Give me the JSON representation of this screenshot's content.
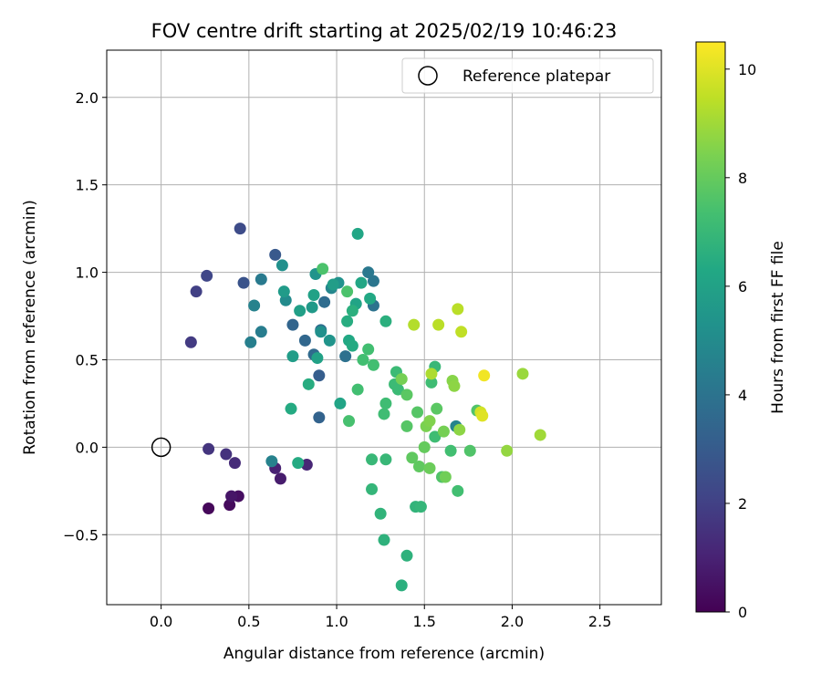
{
  "chart_data": {
    "type": "scatter",
    "title": "FOV centre drift starting at 2025/02/19 10:46:23",
    "xlabel": "Angular distance from reference (arcmin)",
    "ylabel": "Rotation from reference (arcmin)",
    "xlim": [
      -0.31,
      2.85
    ],
    "ylim": [
      -0.9,
      2.27
    ],
    "xticks": [
      0.0,
      0.5,
      1.0,
      1.5,
      2.0,
      2.5
    ],
    "xtick_labels": [
      "0.0",
      "0.5",
      "1.0",
      "1.5",
      "2.0",
      "2.5"
    ],
    "yticks": [
      -0.5,
      0.0,
      0.5,
      1.0,
      1.5,
      2.0
    ],
    "ytick_labels": [
      "−0.5",
      "0.0",
      "0.5",
      "1.0",
      "1.5",
      "2.0"
    ],
    "grid": true,
    "legend": {
      "position": "top-right",
      "entries": [
        "Reference platepar"
      ]
    },
    "reference_point": {
      "x": 0.0,
      "y": 0.0
    },
    "colorbar": {
      "label": "Hours from first FF file",
      "range": [
        0,
        10.5
      ],
      "ticks": [
        0,
        2,
        4,
        6,
        8,
        10
      ],
      "tick_labels": [
        "0",
        "2",
        "4",
        "6",
        "8",
        "10"
      ],
      "colormap": "viridis"
    },
    "points": [
      {
        "x": 0.27,
        "y": -0.35,
        "h": 0.2
      },
      {
        "x": 0.39,
        "y": -0.33,
        "h": 0.3
      },
      {
        "x": 0.44,
        "y": -0.28,
        "h": 0.4
      },
      {
        "x": 0.4,
        "y": -0.28,
        "h": 0.6
      },
      {
        "x": 0.68,
        "y": -0.18,
        "h": 0.8
      },
      {
        "x": 0.65,
        "y": -0.12,
        "h": 1.0
      },
      {
        "x": 0.83,
        "y": -0.1,
        "h": 1.1
      },
      {
        "x": 0.42,
        "y": -0.09,
        "h": 1.3
      },
      {
        "x": 0.37,
        "y": -0.04,
        "h": 1.5
      },
      {
        "x": 0.27,
        "y": -0.01,
        "h": 1.6
      },
      {
        "x": 0.17,
        "y": 0.6,
        "h": 1.8
      },
      {
        "x": 0.2,
        "y": 0.89,
        "h": 2.0
      },
      {
        "x": 0.26,
        "y": 0.98,
        "h": 2.2
      },
      {
        "x": 0.45,
        "y": 1.25,
        "h": 2.4
      },
      {
        "x": 0.47,
        "y": 0.94,
        "h": 2.7
      },
      {
        "x": 0.65,
        "y": 1.1,
        "h": 2.9
      },
      {
        "x": 0.9,
        "y": 0.41,
        "h": 3.1
      },
      {
        "x": 0.9,
        "y": 0.17,
        "h": 3.3
      },
      {
        "x": 0.75,
        "y": 0.7,
        "h": 3.4
      },
      {
        "x": 0.82,
        "y": 0.61,
        "h": 3.5
      },
      {
        "x": 0.87,
        "y": 0.53,
        "h": 3.6
      },
      {
        "x": 0.93,
        "y": 0.83,
        "h": 3.7
      },
      {
        "x": 0.91,
        "y": 0.67,
        "h": 3.8
      },
      {
        "x": 1.05,
        "y": 0.52,
        "h": 3.9
      },
      {
        "x": 1.21,
        "y": 0.81,
        "h": 4.0
      },
      {
        "x": 1.21,
        "y": 0.95,
        "h": 4.1
      },
      {
        "x": 1.18,
        "y": 1.0,
        "h": 4.2
      },
      {
        "x": 0.57,
        "y": 0.96,
        "h": 4.3
      },
      {
        "x": 0.57,
        "y": 0.66,
        "h": 4.4
      },
      {
        "x": 0.51,
        "y": 0.6,
        "h": 4.5
      },
      {
        "x": 0.53,
        "y": 0.81,
        "h": 4.6
      },
      {
        "x": 0.63,
        "y": -0.08,
        "h": 4.6
      },
      {
        "x": 1.68,
        "y": 0.12,
        "h": 4.7
      },
      {
        "x": 0.97,
        "y": 0.91,
        "h": 4.8
      },
      {
        "x": 0.71,
        "y": 0.84,
        "h": 5.0
      },
      {
        "x": 0.69,
        "y": 1.04,
        "h": 5.2
      },
      {
        "x": 0.91,
        "y": 0.66,
        "h": 5.2
      },
      {
        "x": 1.01,
        "y": 0.94,
        "h": 5.3
      },
      {
        "x": 0.88,
        "y": 0.99,
        "h": 5.4
      },
      {
        "x": 0.96,
        "y": 0.61,
        "h": 5.4
      },
      {
        "x": 0.86,
        "y": 0.8,
        "h": 5.6
      },
      {
        "x": 0.7,
        "y": 0.89,
        "h": 5.7
      },
      {
        "x": 0.75,
        "y": 0.52,
        "h": 5.8
      },
      {
        "x": 0.98,
        "y": 0.93,
        "h": 5.8
      },
      {
        "x": 0.79,
        "y": 0.78,
        "h": 5.9
      },
      {
        "x": 0.87,
        "y": 0.87,
        "h": 6.0
      },
      {
        "x": 0.89,
        "y": 0.51,
        "h": 6.0
      },
      {
        "x": 1.02,
        "y": 0.25,
        "h": 6.1
      },
      {
        "x": 1.11,
        "y": 0.82,
        "h": 6.1
      },
      {
        "x": 1.14,
        "y": 0.94,
        "h": 6.2
      },
      {
        "x": 1.12,
        "y": 1.22,
        "h": 6.2
      },
      {
        "x": 1.19,
        "y": 0.85,
        "h": 6.3
      },
      {
        "x": 1.07,
        "y": 0.61,
        "h": 6.3
      },
      {
        "x": 1.09,
        "y": 0.58,
        "h": 6.4
      },
      {
        "x": 0.74,
        "y": 0.22,
        "h": 6.4
      },
      {
        "x": 0.78,
        "y": -0.09,
        "h": 6.4
      },
      {
        "x": 0.84,
        "y": 0.36,
        "h": 6.5
      },
      {
        "x": 1.06,
        "y": 0.72,
        "h": 6.5
      },
      {
        "x": 1.09,
        "y": 0.78,
        "h": 6.6
      },
      {
        "x": 1.28,
        "y": 0.72,
        "h": 6.6
      },
      {
        "x": 1.37,
        "y": -0.79,
        "h": 6.6
      },
      {
        "x": 1.4,
        "y": -0.62,
        "h": 6.7
      },
      {
        "x": 1.27,
        "y": -0.53,
        "h": 6.7
      },
      {
        "x": 1.25,
        "y": -0.38,
        "h": 6.8
      },
      {
        "x": 1.45,
        "y": -0.34,
        "h": 6.8
      },
      {
        "x": 1.48,
        "y": -0.34,
        "h": 6.9
      },
      {
        "x": 1.2,
        "y": -0.24,
        "h": 6.9
      },
      {
        "x": 1.2,
        "y": -0.07,
        "h": 7.0
      },
      {
        "x": 1.28,
        "y": -0.07,
        "h": 7.0
      },
      {
        "x": 1.34,
        "y": 0.43,
        "h": 7.1
      },
      {
        "x": 1.35,
        "y": 0.33,
        "h": 7.1
      },
      {
        "x": 1.33,
        "y": 0.36,
        "h": 7.1
      },
      {
        "x": 1.27,
        "y": 0.19,
        "h": 7.2
      },
      {
        "x": 1.28,
        "y": 0.25,
        "h": 7.2
      },
      {
        "x": 1.18,
        "y": 0.56,
        "h": 7.3
      },
      {
        "x": 1.15,
        "y": 0.5,
        "h": 7.3
      },
      {
        "x": 1.21,
        "y": 0.47,
        "h": 7.3
      },
      {
        "x": 1.12,
        "y": 0.33,
        "h": 7.3
      },
      {
        "x": 1.07,
        "y": 0.15,
        "h": 7.4
      },
      {
        "x": 1.06,
        "y": 0.89,
        "h": 7.5
      },
      {
        "x": 0.92,
        "y": 1.02,
        "h": 7.5
      },
      {
        "x": 1.54,
        "y": 0.37,
        "h": 7.2
      },
      {
        "x": 1.56,
        "y": 0.46,
        "h": 7.0
      },
      {
        "x": 1.56,
        "y": 0.06,
        "h": 7.2
      },
      {
        "x": 1.65,
        "y": -0.02,
        "h": 7.3
      },
      {
        "x": 1.69,
        "y": -0.25,
        "h": 7.3
      },
      {
        "x": 1.6,
        "y": -0.17,
        "h": 7.6
      },
      {
        "x": 1.76,
        "y": -0.02,
        "h": 7.6
      },
      {
        "x": 1.8,
        "y": 0.21,
        "h": 7.6
      },
      {
        "x": 1.4,
        "y": 0.12,
        "h": 7.7
      },
      {
        "x": 1.46,
        "y": 0.2,
        "h": 7.7
      },
      {
        "x": 1.4,
        "y": 0.3,
        "h": 7.8
      },
      {
        "x": 1.57,
        "y": 0.22,
        "h": 7.8
      },
      {
        "x": 1.47,
        "y": -0.11,
        "h": 7.9
      },
      {
        "x": 1.43,
        "y": -0.06,
        "h": 7.9
      },
      {
        "x": 1.5,
        "y": 0.0,
        "h": 8.0
      },
      {
        "x": 1.53,
        "y": -0.12,
        "h": 8.1
      },
      {
        "x": 1.62,
        "y": -0.17,
        "h": 8.2
      },
      {
        "x": 1.61,
        "y": 0.09,
        "h": 8.3
      },
      {
        "x": 1.37,
        "y": 0.39,
        "h": 8.3
      },
      {
        "x": 1.51,
        "y": 0.12,
        "h": 8.4
      },
      {
        "x": 1.53,
        "y": 0.15,
        "h": 8.5
      },
      {
        "x": 1.66,
        "y": 0.38,
        "h": 8.6
      },
      {
        "x": 1.67,
        "y": 0.35,
        "h": 8.7
      },
      {
        "x": 1.7,
        "y": 0.1,
        "h": 8.7
      },
      {
        "x": 1.97,
        "y": -0.02,
        "h": 8.8
      },
      {
        "x": 2.06,
        "y": 0.42,
        "h": 8.9
      },
      {
        "x": 2.16,
        "y": 0.07,
        "h": 9.0
      },
      {
        "x": 1.54,
        "y": 0.42,
        "h": 9.2
      },
      {
        "x": 1.44,
        "y": 0.7,
        "h": 9.3
      },
      {
        "x": 1.58,
        "y": 0.7,
        "h": 9.4
      },
      {
        "x": 1.69,
        "y": 0.79,
        "h": 9.4
      },
      {
        "x": 1.71,
        "y": 0.66,
        "h": 9.5
      },
      {
        "x": 1.82,
        "y": 0.2,
        "h": 9.8
      },
      {
        "x": 1.83,
        "y": 0.18,
        "h": 10.0
      },
      {
        "x": 1.84,
        "y": 0.41,
        "h": 10.3
      }
    ]
  }
}
